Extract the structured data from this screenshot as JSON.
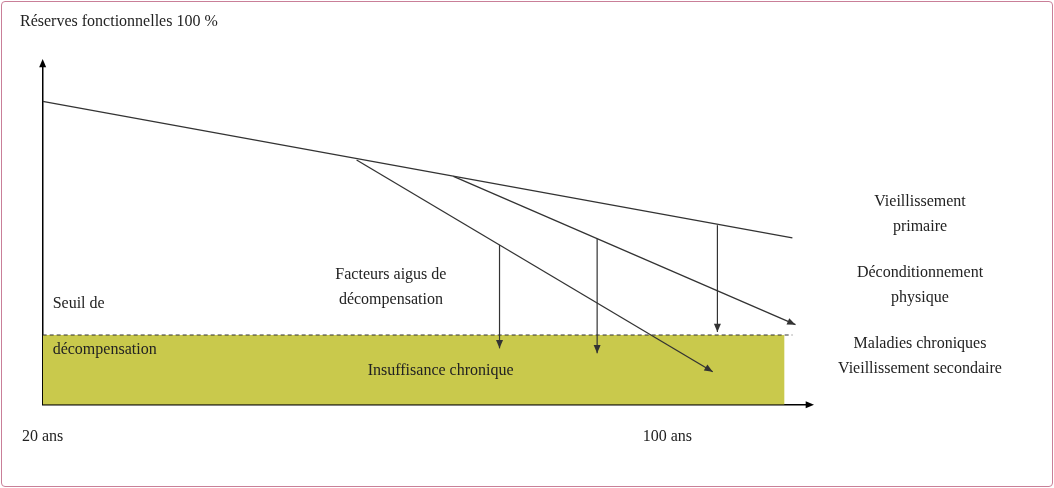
{
  "chart_data": {
    "type": "line",
    "y_label": "Réserves fonctionnelles 100 %",
    "xlim": [
      20,
      118
    ],
    "ylim": [
      0,
      112
    ],
    "xticks": [
      {
        "value": 20,
        "label": "20 ans"
      },
      {
        "value": 100,
        "label": "100 ans"
      }
    ],
    "yticks": [],
    "tick_labels": "x",
    "grid": false,
    "series": [
      {
        "name": [
          "Vieillissement",
          "primaire"
        ],
        "color": "#333333",
        "x": [
          20,
          116
        ],
        "values": [
          100,
          55
        ],
        "marker": "none"
      },
      {
        "name": [
          "Déconditionnement",
          "physique"
        ],
        "color": "#333333",
        "x": [
          72.6,
          116.4
        ],
        "values": [
          75.3,
          26.4
        ],
        "marker": "arrow"
      },
      {
        "name": [
          "Maladies chroniques",
          "Vieillissement secondaire"
        ],
        "color": "#333333",
        "x": [
          60.2,
          105.8
        ],
        "values": [
          80.7,
          10.9
        ],
        "marker": "arrow"
      }
    ],
    "threshold": {
      "label": [
        "Seuil de",
        "décompensation"
      ],
      "value": 23,
      "x": [
        20,
        116
      ],
      "color": "#333333",
      "line_style": "dashed"
    },
    "region": {
      "label": "Insuffisance chronique",
      "x": [
        20,
        115
      ],
      "color": "#c9c94c"
    },
    "arrows": {
      "label": [
        "Facteurs aigus de",
        "décompensation"
      ],
      "color": "#333333",
      "items": [
        {
          "x": 78.5,
          "from": 52.7,
          "to": 18.6
        },
        {
          "x": 91,
          "from": 54.7,
          "to": 17
        },
        {
          "x": 106.4,
          "from": 59.2,
          "to": 24
        }
      ]
    }
  }
}
